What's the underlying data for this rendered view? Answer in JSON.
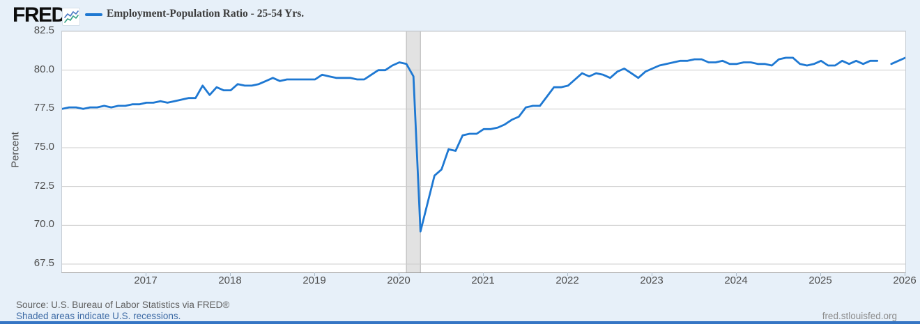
{
  "header": {
    "brand": "FRED",
    "registered_mark": "®",
    "logo_icon": "sparkline-chart-icon",
    "legend_label": "Employment-Population Ratio - 25-54 Yrs."
  },
  "footer": {
    "source": "Source: U.S. Bureau of Labor Statistics via FRED®",
    "recession_note": "Shaded areas indicate U.S. recessions.",
    "site": "fred.stlouisfed.org"
  },
  "colors": {
    "line": "#1e78d2",
    "page_background": "#e7f0f9",
    "plot_background": "#ffffff",
    "gridline": "#cccccc",
    "recession_fill": "#e2e2e2",
    "recession_edge": "#b3b3b3",
    "bottom_accent_bar": "#3575c4",
    "link_text": "#3f6ca6"
  },
  "chart_data": {
    "type": "line",
    "title": "Employment-Population Ratio - 25-54 Yrs.",
    "ylabel": "Percent",
    "xlabel": "",
    "grid": "horizontal",
    "legend_position": "top-left",
    "ylim": [
      67.5,
      82.5
    ],
    "y_ticks": [
      82.5,
      80.0,
      77.5,
      75.0,
      72.5,
      70.0,
      67.5
    ],
    "x_range": [
      2016.0,
      2026.0
    ],
    "x_ticks": [
      2017,
      2018,
      2019,
      2020,
      2021,
      2022,
      2023,
      2024,
      2025,
      2026
    ],
    "recessions": [
      {
        "start": "2020-02",
        "end": "2020-04"
      }
    ],
    "series": [
      {
        "name": "Employment-Population Ratio - 25-54 Yrs.",
        "frequency": "monthly",
        "start": "2016-01",
        "end": "2026-01",
        "gap_months": [
          "2025-10"
        ],
        "color": "#1e78d2",
        "values": [
          77.5,
          77.6,
          77.6,
          77.5,
          77.6,
          77.6,
          77.7,
          77.6,
          77.7,
          77.7,
          77.8,
          77.8,
          77.9,
          77.9,
          78.0,
          77.9,
          78.0,
          78.1,
          78.2,
          78.2,
          79.0,
          78.4,
          78.9,
          78.7,
          78.7,
          79.1,
          79.0,
          79.0,
          79.1,
          79.3,
          79.5,
          79.3,
          79.4,
          79.4,
          79.4,
          79.4,
          79.4,
          79.7,
          79.6,
          79.5,
          79.5,
          79.5,
          79.4,
          79.4,
          79.7,
          80.0,
          80.0,
          80.3,
          80.5,
          80.4,
          79.6,
          69.6,
          71.4,
          73.2,
          73.6,
          74.9,
          74.8,
          75.8,
          75.9,
          75.9,
          76.2,
          76.2,
          76.3,
          76.5,
          76.8,
          77.0,
          77.6,
          77.7,
          77.7,
          78.3,
          78.9,
          78.9,
          79.0,
          79.4,
          79.8,
          79.6,
          79.8,
          79.7,
          79.5,
          79.9,
          80.1,
          79.8,
          79.5,
          79.9,
          80.1,
          80.3,
          80.4,
          80.5,
          80.6,
          80.6,
          80.7,
          80.7,
          80.5,
          80.5,
          80.6,
          80.4,
          80.4,
          80.5,
          80.5,
          80.4,
          80.4,
          80.3,
          80.7,
          80.8,
          80.8,
          80.4,
          80.3,
          80.4,
          80.6,
          80.3,
          80.3,
          80.6,
          80.4,
          80.6,
          80.4,
          80.6,
          80.6,
          null,
          80.4,
          80.6,
          80.8
        ]
      }
    ]
  }
}
